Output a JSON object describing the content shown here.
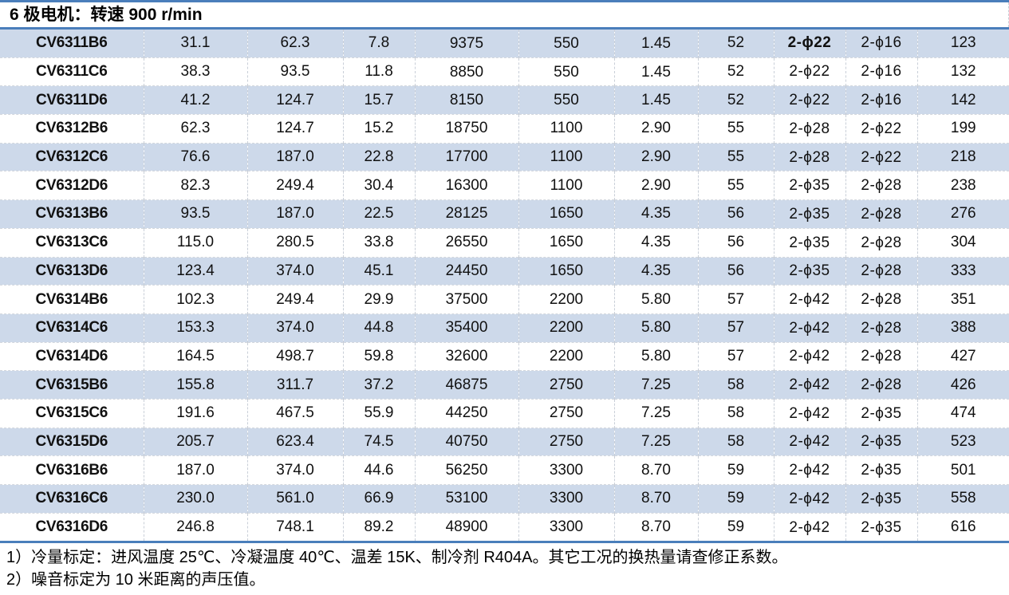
{
  "title": "6 极电机：转速 900 r/min",
  "table": {
    "rows": [
      {
        "model": "CV6311B6",
        "values": [
          "31.1",
          "62.3",
          "7.8",
          "9375",
          "550",
          "1.45",
          "52",
          "2-ϕ22",
          "2-ϕ16",
          "123"
        ]
      },
      {
        "model": "CV6311C6",
        "values": [
          "38.3",
          "93.5",
          "11.8",
          "8850",
          "550",
          "1.45",
          "52",
          "2-ϕ22",
          "2-ϕ16",
          "132"
        ]
      },
      {
        "model": "CV6311D6",
        "values": [
          "41.2",
          "124.7",
          "15.7",
          "8150",
          "550",
          "1.45",
          "52",
          "2-ϕ22",
          "2-ϕ16",
          "142"
        ]
      },
      {
        "model": "CV6312B6",
        "values": [
          "62.3",
          "124.7",
          "15.2",
          "18750",
          "1100",
          "2.90",
          "55",
          "2-ϕ28",
          "2-ϕ22",
          "199"
        ]
      },
      {
        "model": "CV6312C6",
        "values": [
          "76.6",
          "187.0",
          "22.8",
          "17700",
          "1100",
          "2.90",
          "55",
          "2-ϕ28",
          "2-ϕ22",
          "218"
        ]
      },
      {
        "model": "CV6312D6",
        "values": [
          "82.3",
          "249.4",
          "30.4",
          "16300",
          "1100",
          "2.90",
          "55",
          "2-ϕ35",
          "2-ϕ28",
          "238"
        ]
      },
      {
        "model": "CV6313B6",
        "values": [
          "93.5",
          "187.0",
          "22.5",
          "28125",
          "1650",
          "4.35",
          "56",
          "2-ϕ35",
          "2-ϕ28",
          "276"
        ]
      },
      {
        "model": "CV6313C6",
        "values": [
          "115.0",
          "280.5",
          "33.8",
          "26550",
          "1650",
          "4.35",
          "56",
          "2-ϕ35",
          "2-ϕ28",
          "304"
        ]
      },
      {
        "model": "CV6313D6",
        "values": [
          "123.4",
          "374.0",
          "45.1",
          "24450",
          "1650",
          "4.35",
          "56",
          "2-ϕ35",
          "2-ϕ28",
          "333"
        ]
      },
      {
        "model": "CV6314B6",
        "values": [
          "102.3",
          "249.4",
          "29.9",
          "37500",
          "2200",
          "5.80",
          "57",
          "2-ϕ42",
          "2-ϕ28",
          "351"
        ]
      },
      {
        "model": "CV6314C6",
        "values": [
          "153.3",
          "374.0",
          "44.8",
          "35400",
          "2200",
          "5.80",
          "57",
          "2-ϕ42",
          "2-ϕ28",
          "388"
        ]
      },
      {
        "model": "CV6314D6",
        "values": [
          "164.5",
          "498.7",
          "59.8",
          "32600",
          "2200",
          "5.80",
          "57",
          "2-ϕ42",
          "2-ϕ28",
          "427"
        ]
      },
      {
        "model": "CV6315B6",
        "values": [
          "155.8",
          "311.7",
          "37.2",
          "46875",
          "2750",
          "7.25",
          "58",
          "2-ϕ42",
          "2-ϕ28",
          "426"
        ]
      },
      {
        "model": "CV6315C6",
        "values": [
          "191.6",
          "467.5",
          "55.9",
          "44250",
          "2750",
          "7.25",
          "58",
          "2-ϕ42",
          "2-ϕ35",
          "474"
        ]
      },
      {
        "model": "CV6315D6",
        "values": [
          "205.7",
          "623.4",
          "74.5",
          "40750",
          "2750",
          "7.25",
          "58",
          "2-ϕ42",
          "2-ϕ35",
          "523"
        ]
      },
      {
        "model": "CV6316B6",
        "values": [
          "187.0",
          "374.0",
          "44.6",
          "56250",
          "3300",
          "8.70",
          "59",
          "2-ϕ42",
          "2-ϕ35",
          "501"
        ]
      },
      {
        "model": "CV6316C6",
        "values": [
          "230.0",
          "561.0",
          "66.9",
          "53100",
          "3300",
          "8.70",
          "59",
          "2-ϕ42",
          "2-ϕ35",
          "558"
        ]
      },
      {
        "model": "CV6316D6",
        "values": [
          "246.8",
          "748.1",
          "89.2",
          "48900",
          "3300",
          "8.70",
          "59",
          "2-ϕ42",
          "2-ϕ35",
          "616"
        ]
      }
    ]
  },
  "notes": [
    "1）冷量标定：进风温度 25℃、冷凝温度 40℃、温差 15K、制冷剂 R404A。其它工况的换热量请查修正系数。",
    "2）噪音标定为 10 米距离的声压值。"
  ],
  "colors": {
    "accent_blue": "#4a7ebb",
    "row_alt_bg": "#cdd9ea",
    "value_blue": "#4f7db8",
    "muted_blue": "#7693c1"
  }
}
